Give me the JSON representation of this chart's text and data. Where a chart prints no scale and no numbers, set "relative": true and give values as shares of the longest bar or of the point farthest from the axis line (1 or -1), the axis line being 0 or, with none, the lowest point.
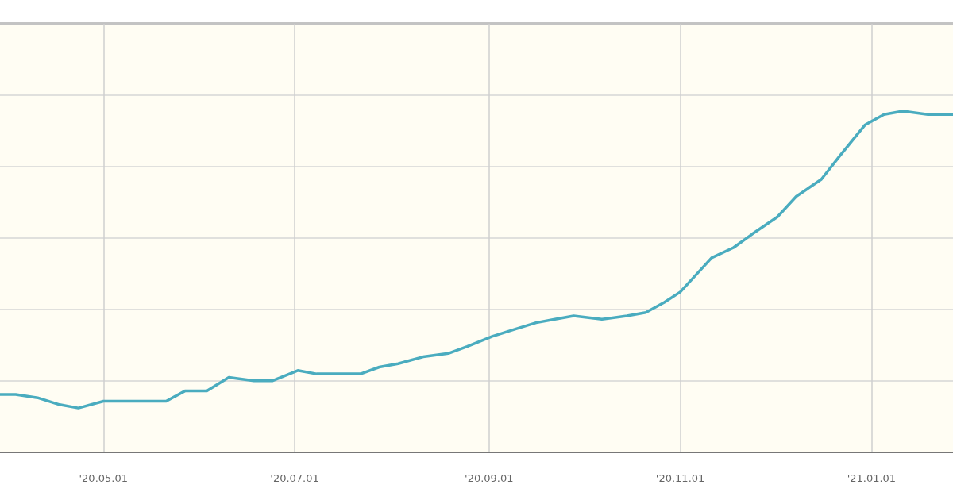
{
  "chart_data": {
    "type": "line",
    "relative": true,
    "grid": true,
    "marker": "none",
    "line_style": "solid",
    "x": [
      "2020-03-29",
      "2020-04-03",
      "2020-04-10",
      "2020-04-17",
      "2020-04-23",
      "2020-05-01",
      "2020-05-08",
      "2020-05-15",
      "2020-05-21",
      "2020-05-27",
      "2020-06-03",
      "2020-06-10",
      "2020-06-18",
      "2020-06-24",
      "2020-07-02",
      "2020-07-08",
      "2020-07-16",
      "2020-07-22",
      "2020-07-28",
      "2020-08-03",
      "2020-08-11",
      "2020-08-19",
      "2020-08-25",
      "2020-09-02",
      "2020-09-09",
      "2020-09-16",
      "2020-09-22",
      "2020-09-28",
      "2020-10-07",
      "2020-10-15",
      "2020-10-21",
      "2020-10-27",
      "2020-11-01",
      "2020-11-06",
      "2020-11-11",
      "2020-11-18",
      "2020-11-24",
      "2020-12-02",
      "2020-12-08",
      "2020-12-16",
      "2020-12-22",
      "2020-12-30",
      "2021-01-05",
      "2021-01-11",
      "2021-01-19",
      "2021-01-27"
    ],
    "series": [
      {
        "color": "#4aacbf",
        "values": [
          0.17,
          0.17,
          0.16,
          0.14,
          0.13,
          0.15,
          0.15,
          0.15,
          0.15,
          0.18,
          0.18,
          0.22,
          0.21,
          0.21,
          0.24,
          0.23,
          0.23,
          0.23,
          0.25,
          0.26,
          0.28,
          0.29,
          0.31,
          0.34,
          0.36,
          0.38,
          0.39,
          0.4,
          0.39,
          0.4,
          0.41,
          0.44,
          0.47,
          0.52,
          0.57,
          0.6,
          0.64,
          0.69,
          0.75,
          0.8,
          0.87,
          0.96,
          0.99,
          1,
          0.99,
          0.99
        ]
      }
    ],
    "xlim": [
      "2020-03-29",
      "2021-01-27"
    ],
    "xticks": [
      {
        "value": "2020-05-01",
        "label": "'20.05.01"
      },
      {
        "value": "2020-07-01",
        "label": "'20.07.01"
      },
      {
        "value": "2020-09-01",
        "label": "'20.09.01"
      },
      {
        "value": "2020-11-01",
        "label": "'20.11.01"
      },
      {
        "value": "2021-01-01",
        "label": "'21.01.01"
      }
    ]
  }
}
